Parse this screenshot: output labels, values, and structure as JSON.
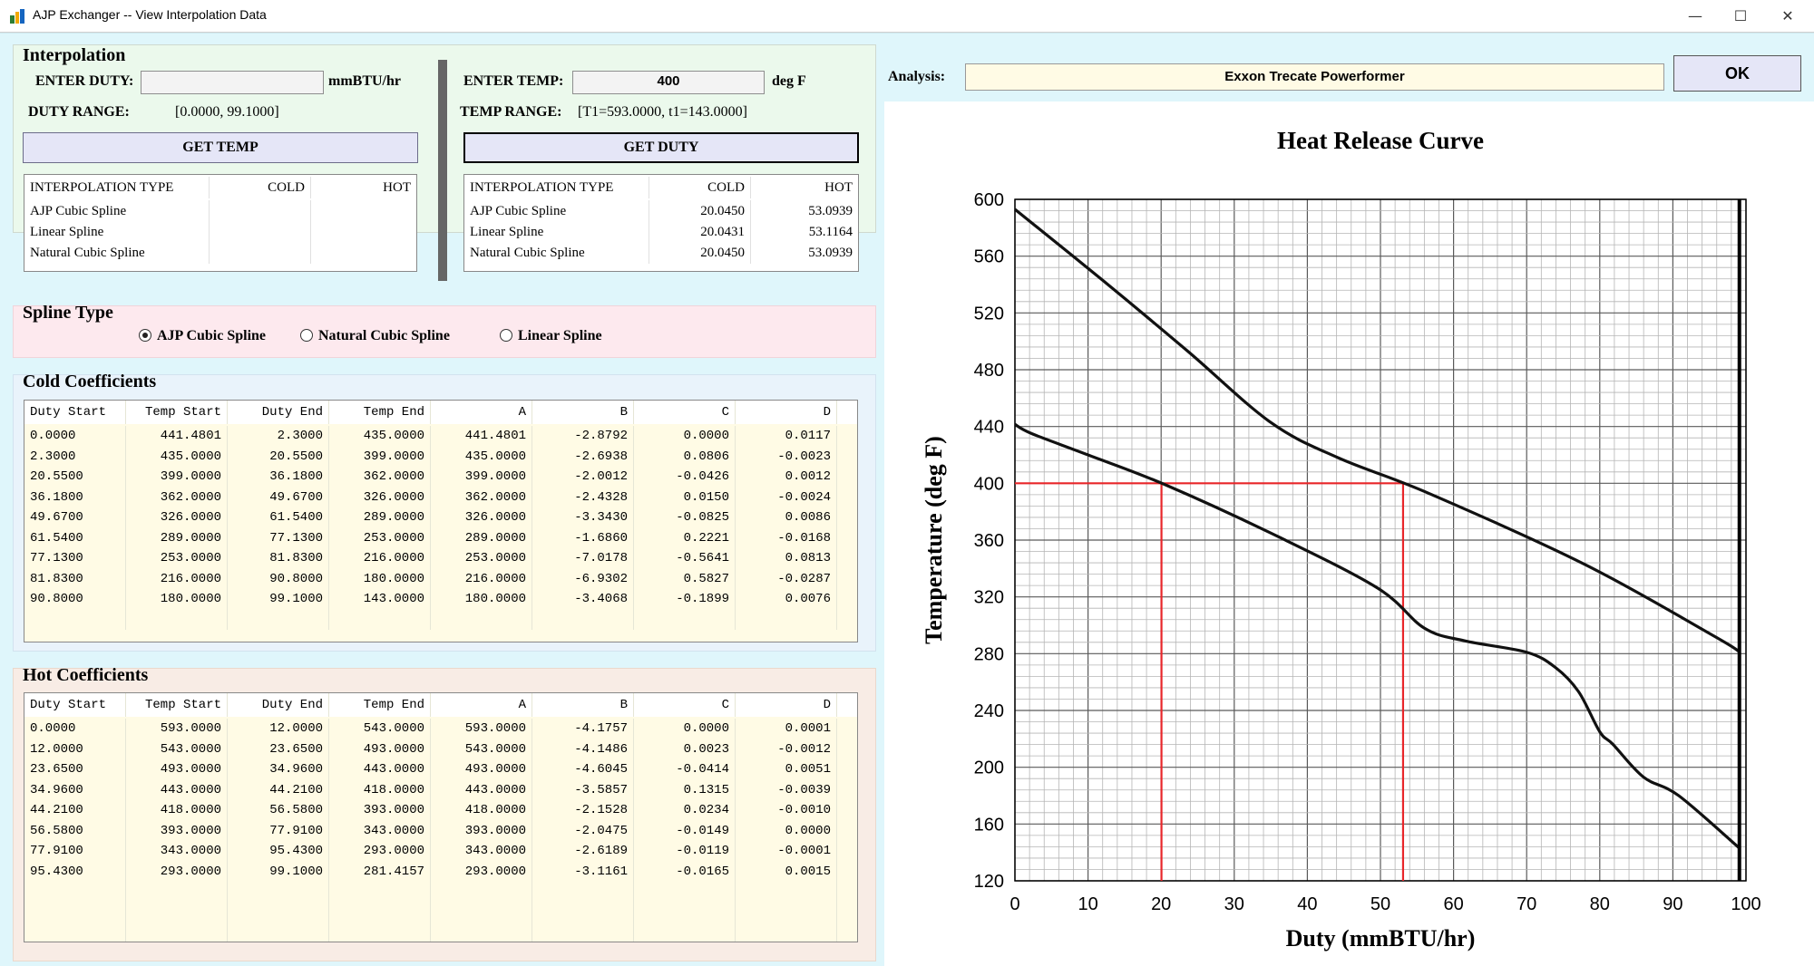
{
  "window": {
    "title": "AJP Exchanger  -- View Interpolation Data",
    "minimize_glyph": "—",
    "maximize_glyph": "☐",
    "close_glyph": "✕"
  },
  "interpolation": {
    "title": "Interpolation",
    "enter_duty_label": "ENTER DUTY:",
    "duty_value": "",
    "duty_unit": "mmBTU/hr",
    "duty_range_label": "DUTY RANGE:",
    "duty_range_value": "[0.0000, 99.1000]",
    "get_temp_button": "GET TEMP",
    "enter_temp_label": "ENTER TEMP:",
    "temp_value": "400",
    "temp_unit": "deg F",
    "temp_range_label": "TEMP RANGE:",
    "temp_range_value": "[T1=593.0000, t1=143.0000]",
    "get_duty_button": "GET DUTY",
    "columns": [
      "INTERPOLATION TYPE",
      "COLD",
      "HOT"
    ],
    "left_rows": [
      [
        "AJP Cubic Spline",
        "",
        ""
      ],
      [
        "Linear Spline",
        "",
        ""
      ],
      [
        "Natural Cubic Spline",
        "",
        ""
      ]
    ],
    "right_rows": [
      [
        "AJP Cubic Spline",
        "20.0450",
        "53.0939"
      ],
      [
        "Linear Spline",
        "20.0431",
        "53.1164"
      ],
      [
        "Natural Cubic Spline",
        "20.0450",
        "53.0939"
      ]
    ]
  },
  "spline_type": {
    "title": "Spline Type",
    "options": [
      "AJP Cubic Spline",
      "Natural Cubic Spline",
      "Linear Spline"
    ],
    "selected": "AJP Cubic Spline"
  },
  "cold_coefficients": {
    "title": "Cold Coefficients",
    "columns": [
      "Duty Start",
      "Temp Start",
      "Duty End",
      "Temp End",
      "A",
      "B",
      "C",
      "D"
    ],
    "rows": [
      [
        "0.0000",
        "441.4801",
        "2.3000",
        "435.0000",
        "441.4801",
        "-2.8792",
        "0.0000",
        "0.0117"
      ],
      [
        "2.3000",
        "435.0000",
        "20.5500",
        "399.0000",
        "435.0000",
        "-2.6938",
        "0.0806",
        "-0.0023"
      ],
      [
        "20.5500",
        "399.0000",
        "36.1800",
        "362.0000",
        "399.0000",
        "-2.0012",
        "-0.0426",
        "0.0012"
      ],
      [
        "36.1800",
        "362.0000",
        "49.6700",
        "326.0000",
        "362.0000",
        "-2.4328",
        "0.0150",
        "-0.0024"
      ],
      [
        "49.6700",
        "326.0000",
        "61.5400",
        "289.0000",
        "326.0000",
        "-3.3430",
        "-0.0825",
        "0.0086"
      ],
      [
        "61.5400",
        "289.0000",
        "77.1300",
        "253.0000",
        "289.0000",
        "-1.6860",
        "0.2221",
        "-0.0168"
      ],
      [
        "77.1300",
        "253.0000",
        "81.8300",
        "216.0000",
        "253.0000",
        "-7.0178",
        "-0.5641",
        "0.0813"
      ],
      [
        "81.8300",
        "216.0000",
        "90.8000",
        "180.0000",
        "216.0000",
        "-6.9302",
        "0.5827",
        "-0.0287"
      ],
      [
        "90.8000",
        "180.0000",
        "99.1000",
        "143.0000",
        "180.0000",
        "-3.4068",
        "-0.1899",
        "0.0076"
      ]
    ]
  },
  "hot_coefficients": {
    "title": "Hot Coefficients",
    "columns": [
      "Duty Start",
      "Temp Start",
      "Duty End",
      "Temp End",
      "A",
      "B",
      "C",
      "D"
    ],
    "rows": [
      [
        "0.0000",
        "593.0000",
        "12.0000",
        "543.0000",
        "593.0000",
        "-4.1757",
        "0.0000",
        "0.0001"
      ],
      [
        "12.0000",
        "543.0000",
        "23.6500",
        "493.0000",
        "543.0000",
        "-4.1486",
        "0.0023",
        "-0.0012"
      ],
      [
        "23.6500",
        "493.0000",
        "34.9600",
        "443.0000",
        "493.0000",
        "-4.6045",
        "-0.0414",
        "0.0051"
      ],
      [
        "34.9600",
        "443.0000",
        "44.2100",
        "418.0000",
        "443.0000",
        "-3.5857",
        "0.1315",
        "-0.0039"
      ],
      [
        "44.2100",
        "418.0000",
        "56.5800",
        "393.0000",
        "418.0000",
        "-2.1528",
        "0.0234",
        "-0.0010"
      ],
      [
        "56.5800",
        "393.0000",
        "77.9100",
        "343.0000",
        "393.0000",
        "-2.0475",
        "-0.0149",
        "0.0000"
      ],
      [
        "77.9100",
        "343.0000",
        "95.4300",
        "293.0000",
        "343.0000",
        "-2.6189",
        "-0.0119",
        "-0.0001"
      ],
      [
        "95.4300",
        "293.0000",
        "99.1000",
        "281.4157",
        "293.0000",
        "-3.1161",
        "-0.0165",
        "0.0015"
      ]
    ]
  },
  "analysis": {
    "label": "Analysis:",
    "value": "Exxon Trecate Powerformer",
    "ok_button": "OK"
  },
  "colors": {
    "interp_panel": "#ebf9ec",
    "spline_panel": "#fde9ee",
    "cold_panel": "#e9f3fb",
    "hot_panel": "#f8ece5",
    "grid_fill": "#fffbe5",
    "red_line": "#e8262a"
  },
  "chart_data": {
    "type": "line",
    "title": "Heat Release Curve",
    "xlabel": "Duty (mmBTU/hr)",
    "ylabel": "Temperature (deg F)",
    "xlim": [
      0,
      100
    ],
    "ylim": [
      120,
      600
    ],
    "xticks": [
      0,
      10,
      20,
      30,
      40,
      50,
      60,
      70,
      80,
      90,
      100
    ],
    "yticks": [
      120,
      160,
      200,
      240,
      280,
      320,
      360,
      400,
      440,
      480,
      520,
      560,
      600
    ],
    "grid": true,
    "series": [
      {
        "curve": "hot",
        "color": "#111111",
        "x": [
          0,
          12,
          23.65,
          34.96,
          44.21,
          56.58,
          77.91,
          95.43,
          99.1
        ],
        "y": [
          593,
          543,
          493,
          443,
          418,
          393,
          343,
          293,
          281.4
        ]
      },
      {
        "curve": "cold",
        "color": "#111111",
        "x": [
          0,
          2.3,
          10,
          20.55,
          36.18,
          49.67,
          56,
          61.54,
          70,
          74,
          77.13,
          80,
          81.83,
          86,
          90.8,
          99.1
        ],
        "y": [
          441.5,
          435,
          420,
          399,
          362,
          326,
          298,
          289,
          281,
          270,
          253,
          225,
          216,
          193,
          180,
          143
        ]
      }
    ],
    "markers": {
      "temp": 400,
      "cold_duty": 20.045,
      "hot_duty": 53.0939,
      "color": "#e8262a"
    },
    "vertical_line_x": 99.1
  }
}
